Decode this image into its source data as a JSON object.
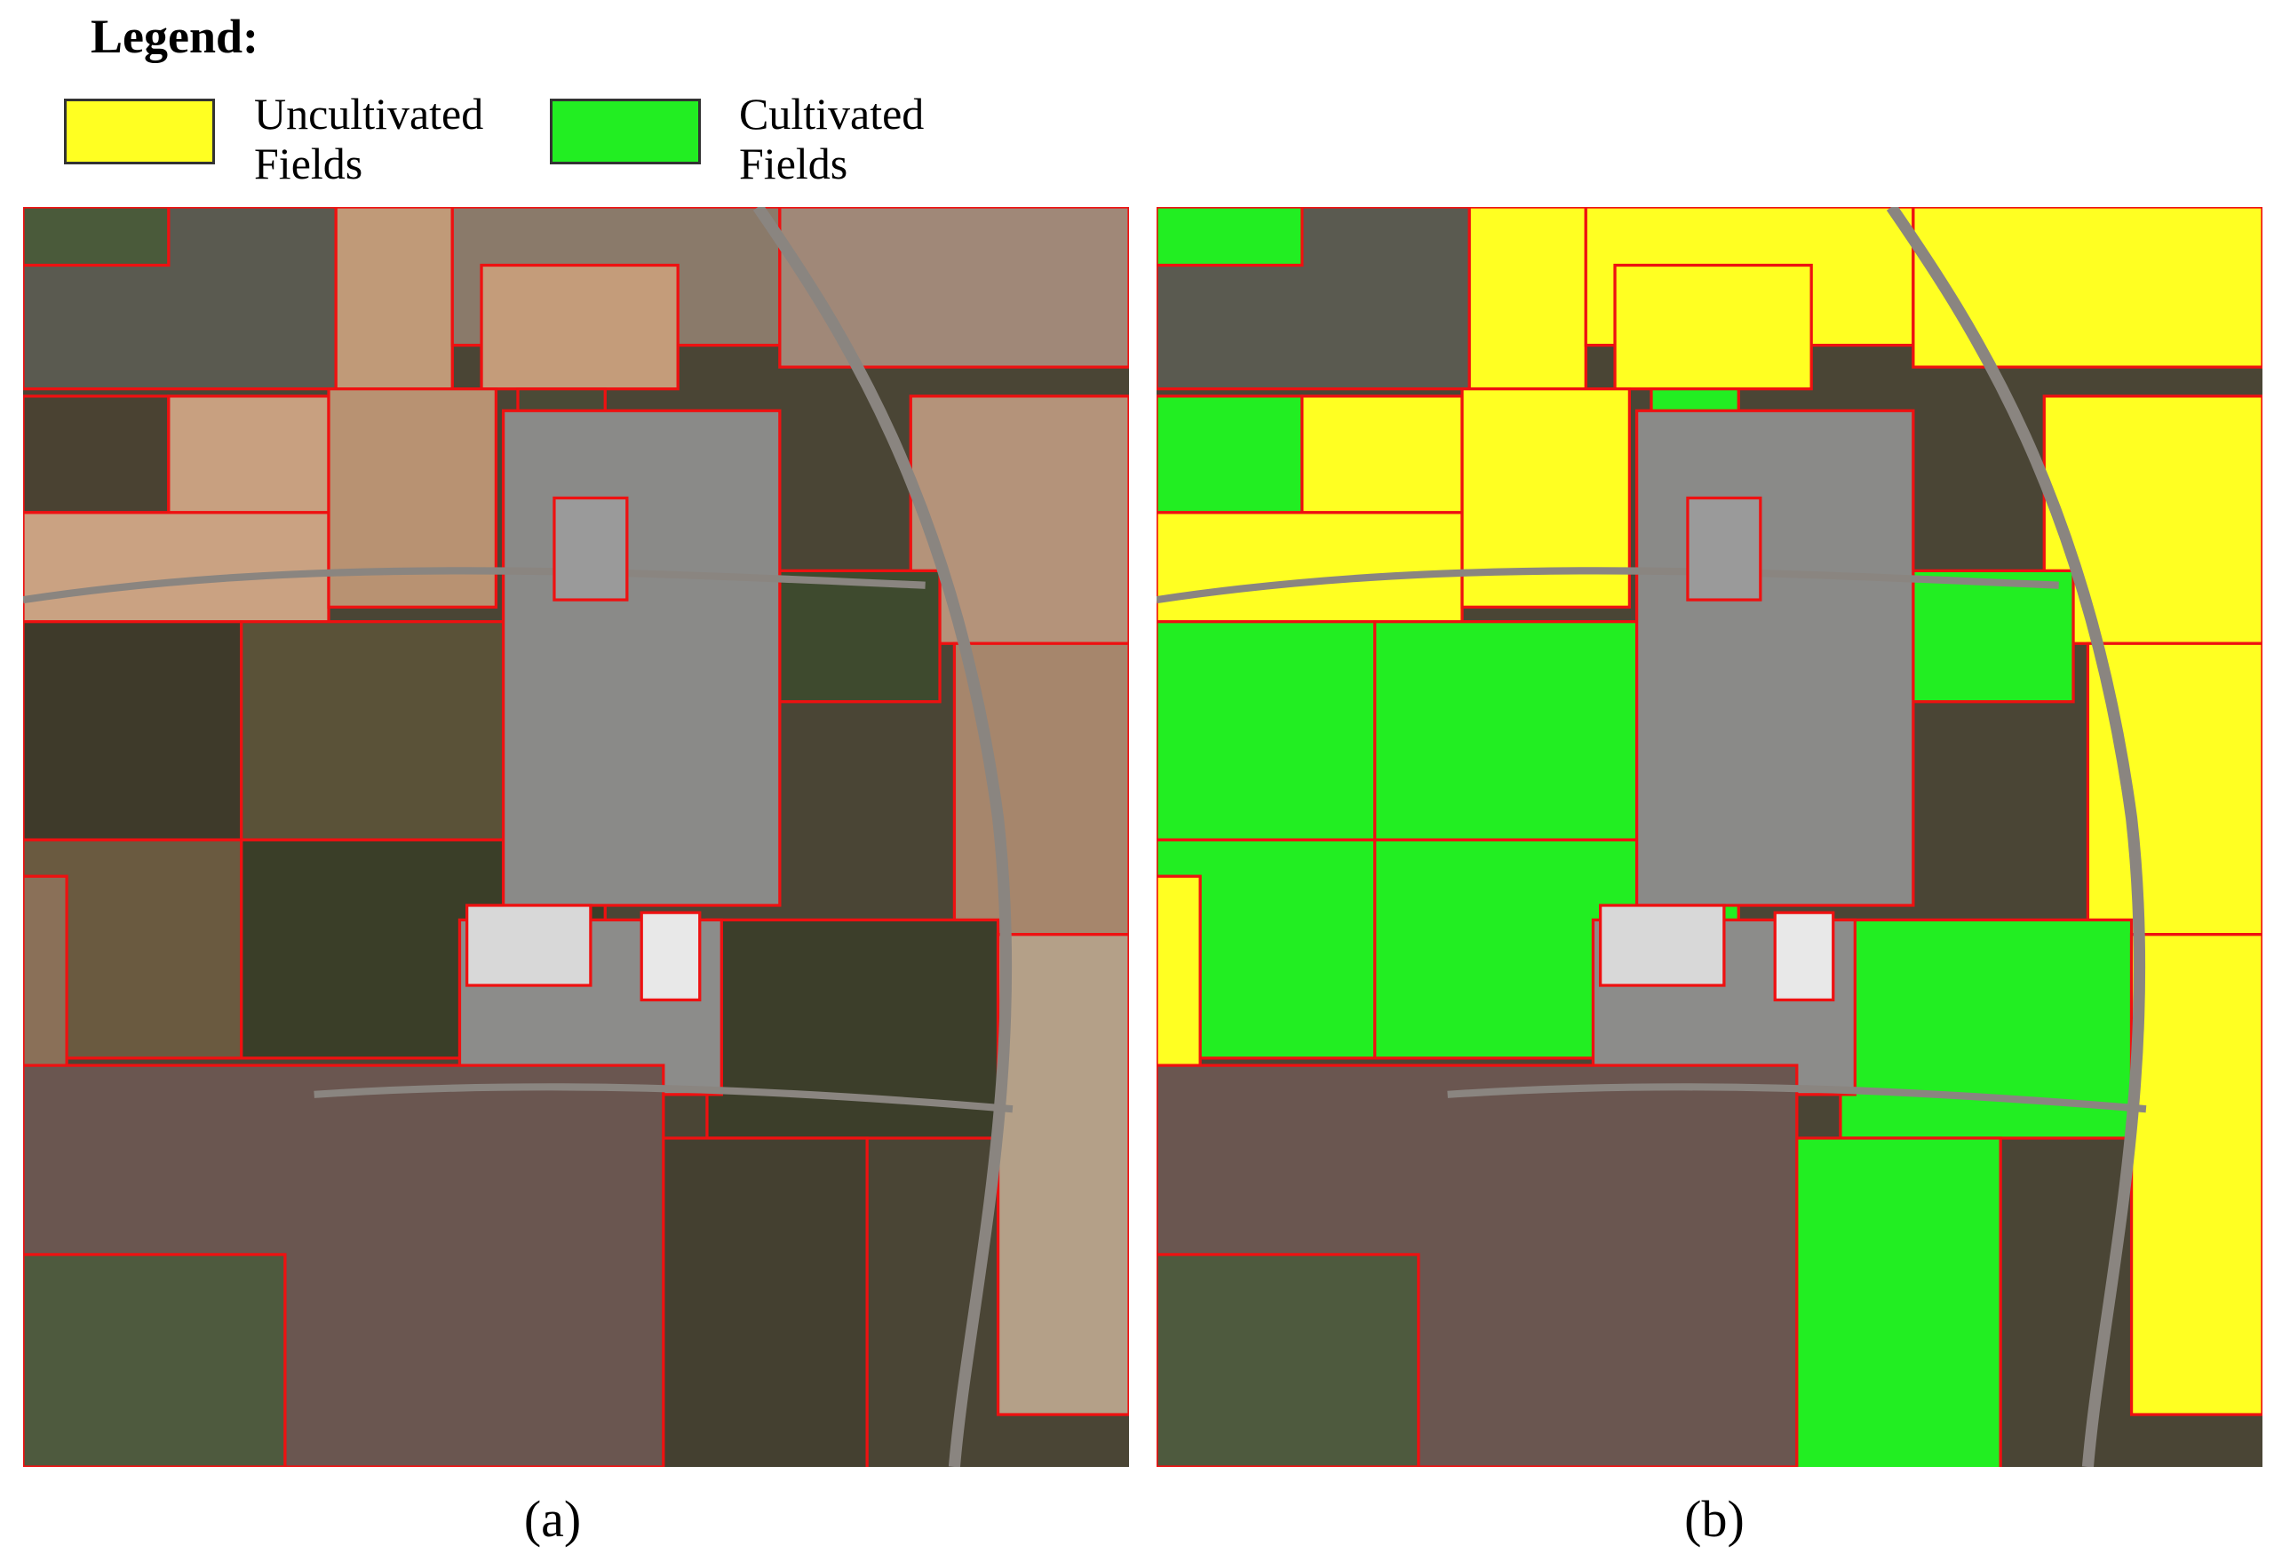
{
  "legend": {
    "title": "Legend:",
    "items": [
      {
        "label": "Uncultivated Fields",
        "color": "#ffff22"
      },
      {
        "label": "Cultivated Fields",
        "color": "#22ee22"
      }
    ]
  },
  "panels": [
    {
      "label": "(a)"
    },
    {
      "label": "(b)"
    }
  ]
}
